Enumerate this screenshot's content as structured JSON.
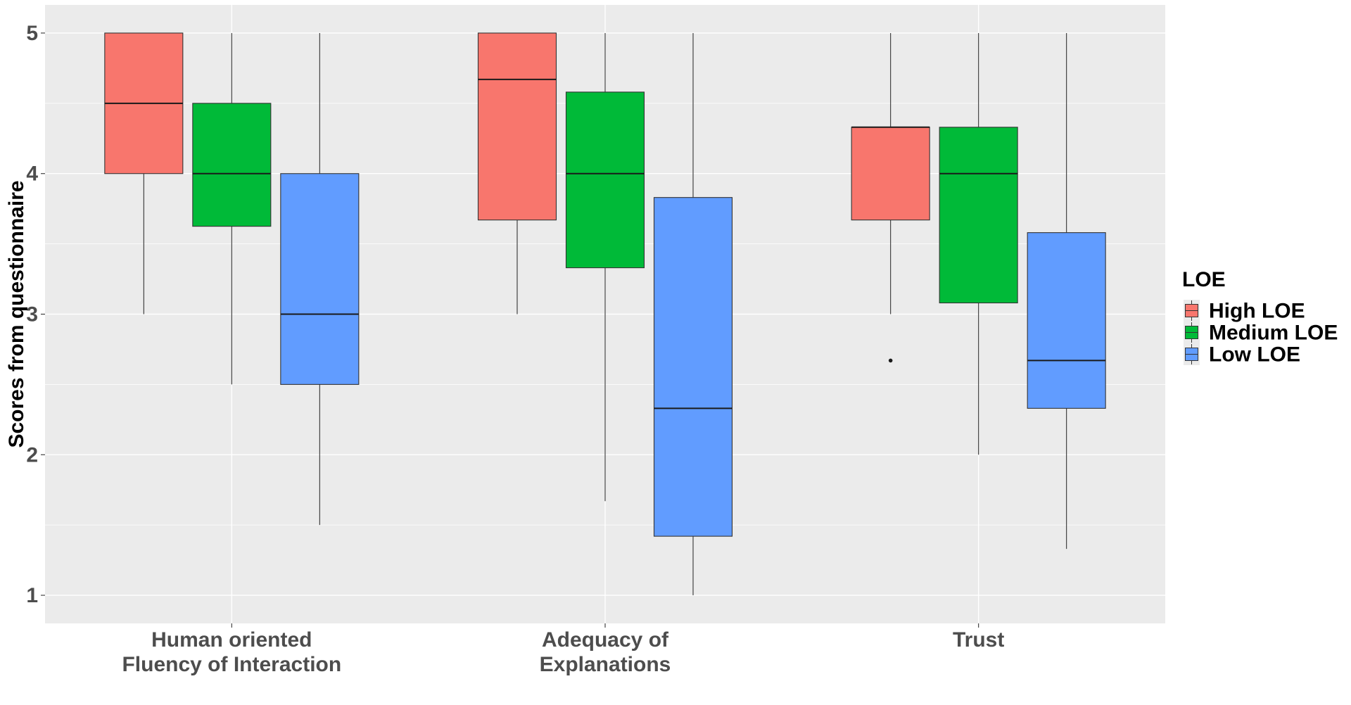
{
  "chart_data": {
    "type": "boxplot",
    "title": "",
    "xlabel": "",
    "ylabel": "Scores from questionnaire",
    "ylim": [
      0.8,
      5.2
    ],
    "yticks": [
      1,
      2,
      3,
      4,
      5
    ],
    "grid": true,
    "legend": {
      "title": "LOE",
      "position": "right",
      "entries": [
        {
          "name": "High LOE",
          "color": "#F8766D"
        },
        {
          "name": "Medium LOE",
          "color": "#00BA38"
        },
        {
          "name": "Low LOE",
          "color": "#619CFF"
        }
      ]
    },
    "categories": [
      {
        "key": "hofi",
        "lines": [
          "Human oriented",
          "Fluency of Interaction"
        ]
      },
      {
        "key": "aoe",
        "lines": [
          "Adequacy of",
          "Explanations"
        ]
      },
      {
        "key": "trust",
        "lines": [
          "Trust"
        ]
      }
    ],
    "series": [
      {
        "name": "High LOE",
        "color": "#F8766D",
        "boxes": [
          {
            "whisker_low": 3.0,
            "q1": 4.0,
            "median": 4.5,
            "q3": 5.0,
            "whisker_high": 5.0,
            "outliers": []
          },
          {
            "whisker_low": 3.0,
            "q1": 3.67,
            "median": 4.67,
            "q3": 5.0,
            "whisker_high": 5.0,
            "outliers": []
          },
          {
            "whisker_low": 3.0,
            "q1": 3.67,
            "median": 4.33,
            "q3": 4.33,
            "whisker_high": 5.0,
            "outliers": [
              2.67
            ]
          }
        ]
      },
      {
        "name": "Medium LOE",
        "color": "#00BA38",
        "boxes": [
          {
            "whisker_low": 2.5,
            "q1": 3.625,
            "median": 4.0,
            "q3": 4.5,
            "whisker_high": 5.0,
            "outliers": []
          },
          {
            "whisker_low": 1.67,
            "q1": 3.33,
            "median": 4.0,
            "q3": 4.58,
            "whisker_high": 5.0,
            "outliers": []
          },
          {
            "whisker_low": 2.0,
            "q1": 3.08,
            "median": 4.0,
            "q3": 4.33,
            "whisker_high": 5.0,
            "outliers": []
          }
        ]
      },
      {
        "name": "Low LOE",
        "color": "#619CFF",
        "boxes": [
          {
            "whisker_low": 1.5,
            "q1": 2.5,
            "median": 3.0,
            "q3": 4.0,
            "whisker_high": 5.0,
            "outliers": []
          },
          {
            "whisker_low": 1.0,
            "q1": 1.42,
            "median": 2.33,
            "q3": 3.83,
            "whisker_high": 5.0,
            "outliers": []
          },
          {
            "whisker_low": 1.33,
            "q1": 2.33,
            "median": 2.67,
            "q3": 3.58,
            "whisker_high": 5.0,
            "outliers": []
          }
        ]
      }
    ]
  },
  "colors": {
    "panel_background": "#EBEBEB",
    "grid_major": "#FFFFFF",
    "axis_text": "#4D4D4D",
    "title_text": "#000000"
  }
}
